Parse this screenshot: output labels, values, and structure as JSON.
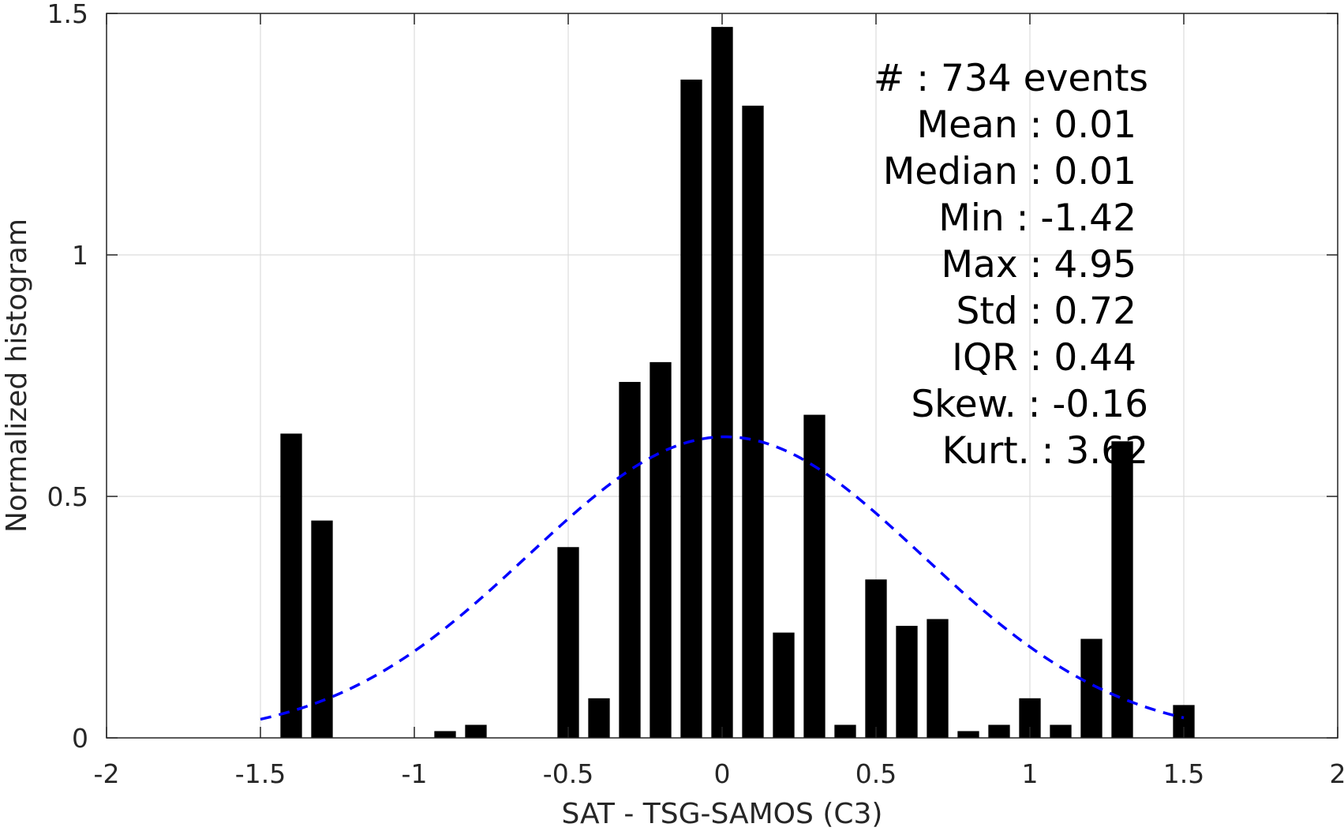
{
  "chart_data": {
    "type": "bar",
    "xlabel": "SAT - TSG-SAMOS (C3)",
    "ylabel": "Normalized histogram",
    "xlim": [
      -2,
      2
    ],
    "ylim": [
      0,
      1.5
    ],
    "xticks": [
      -2,
      -1.5,
      -1,
      -0.5,
      0,
      0.5,
      1,
      1.5,
      2
    ],
    "xtick_labels": [
      "-2",
      "-1.5",
      "-1",
      "-0.5",
      "0",
      "0.5",
      "1",
      "1.5",
      "2"
    ],
    "yticks": [
      0,
      0.5,
      1,
      1.5
    ],
    "ytick_labels": [
      "0",
      "0.5",
      "1",
      "1.5"
    ],
    "grid": true,
    "bar_width": 0.07,
    "bar_color": "#000000",
    "bars": {
      "x": [
        -1.4,
        -1.3,
        -0.9,
        -0.8,
        -0.5,
        -0.4,
        -0.3,
        -0.2,
        -0.1,
        0.0,
        0.1,
        0.2,
        0.3,
        0.4,
        0.5,
        0.6,
        0.7,
        0.8,
        0.9,
        1.0,
        1.1,
        1.2,
        1.3,
        1.5
      ],
      "values": [
        0.63,
        0.45,
        0.014,
        0.027,
        0.395,
        0.082,
        0.737,
        0.778,
        1.363,
        1.472,
        1.309,
        0.218,
        0.669,
        0.027,
        0.328,
        0.232,
        0.246,
        0.014,
        0.027,
        0.082,
        0.027,
        0.205,
        0.614,
        0.068
      ]
    },
    "fit_curve": {
      "kind": "normal",
      "mean": 0.01,
      "std": 0.64,
      "x_range": [
        -1.5,
        1.5
      ],
      "color": "#0000ff",
      "style": "dashed"
    },
    "stats": [
      {
        "label": "#  : 734 events"
      },
      {
        "label": "Mean : 0.01"
      },
      {
        "label": "Median : 0.01"
      },
      {
        "label": "Min : -1.42"
      },
      {
        "label": "Max : 4.95"
      },
      {
        "label": "Std : 0.72"
      },
      {
        "label": "IQR : 0.44"
      },
      {
        "label": "Skew. : -0.16"
      },
      {
        "label": "Kurt. : 3.62"
      }
    ]
  }
}
